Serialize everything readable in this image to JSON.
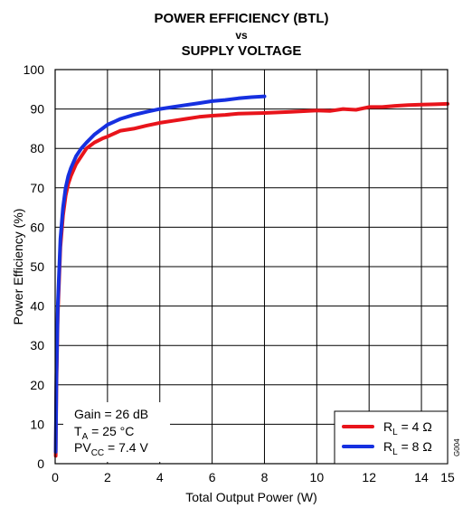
{
  "chart_data": {
    "type": "line",
    "title_line1": "POWER EFFICIENCY (BTL)",
    "title_line2": "vs",
    "title_line3": "SUPPLY VOLTAGE",
    "xlabel": "Total Output Power (W)",
    "ylabel": "Power Efficiency (%)",
    "xlim": [
      0,
      15
    ],
    "ylim": [
      0,
      100
    ],
    "xticks": [
      0,
      2,
      4,
      6,
      8,
      10,
      12,
      14,
      15
    ],
    "yticks": [
      0,
      10,
      20,
      30,
      40,
      50,
      60,
      70,
      80,
      90,
      100
    ],
    "grid": true,
    "annotations": [
      "Gain = 26 dB",
      "T",
      "A",
      " = 25 °C",
      "PV",
      "CC",
      " = 7.4 V"
    ],
    "legend_position": "bottom-right",
    "series": [
      {
        "name_main": "R",
        "name_sub": "L",
        "name_rest": " = 4 Ω",
        "color": "#e8141b",
        "x": [
          0.02,
          0.05,
          0.1,
          0.2,
          0.3,
          0.4,
          0.5,
          0.6,
          0.8,
          1.0,
          1.2,
          1.5,
          1.8,
          2.0,
          2.5,
          3.0,
          3.5,
          4.0,
          4.5,
          5.0,
          5.5,
          6.0,
          6.5,
          7.0,
          8.0,
          9.0,
          10.0,
          10.5,
          11.0,
          11.5,
          12.0,
          12.5,
          13.0,
          13.5,
          14.0,
          14.5,
          15.0
        ],
        "y": [
          2,
          20,
          38,
          55,
          63,
          68,
          71,
          73,
          76,
          78,
          80,
          81.5,
          82.5,
          83,
          84.5,
          85,
          85.8,
          86.5,
          87,
          87.5,
          88,
          88.3,
          88.5,
          88.8,
          89,
          89.3,
          89.6,
          89.5,
          90,
          89.8,
          90.5,
          90.5,
          90.8,
          91,
          91.1,
          91.2,
          91.3
        ]
      },
      {
        "name_main": "R",
        "name_sub": "L",
        "name_rest": " = 8 Ω",
        "color": "#1630e0",
        "x": [
          0.02,
          0.05,
          0.1,
          0.2,
          0.3,
          0.4,
          0.5,
          0.6,
          0.8,
          1.0,
          1.2,
          1.5,
          1.8,
          2.0,
          2.5,
          3.0,
          3.5,
          4.0,
          4.5,
          5.0,
          5.5,
          6.0,
          6.5,
          7.0,
          7.5,
          8.0
        ],
        "y": [
          3,
          22,
          40,
          57,
          65,
          70,
          73,
          75,
          78,
          80,
          81.5,
          83.5,
          85,
          86,
          87.5,
          88.5,
          89.3,
          90,
          90.5,
          91,
          91.5,
          92,
          92.3,
          92.7,
          93,
          93.2
        ]
      }
    ]
  },
  "chart_id": "G004"
}
